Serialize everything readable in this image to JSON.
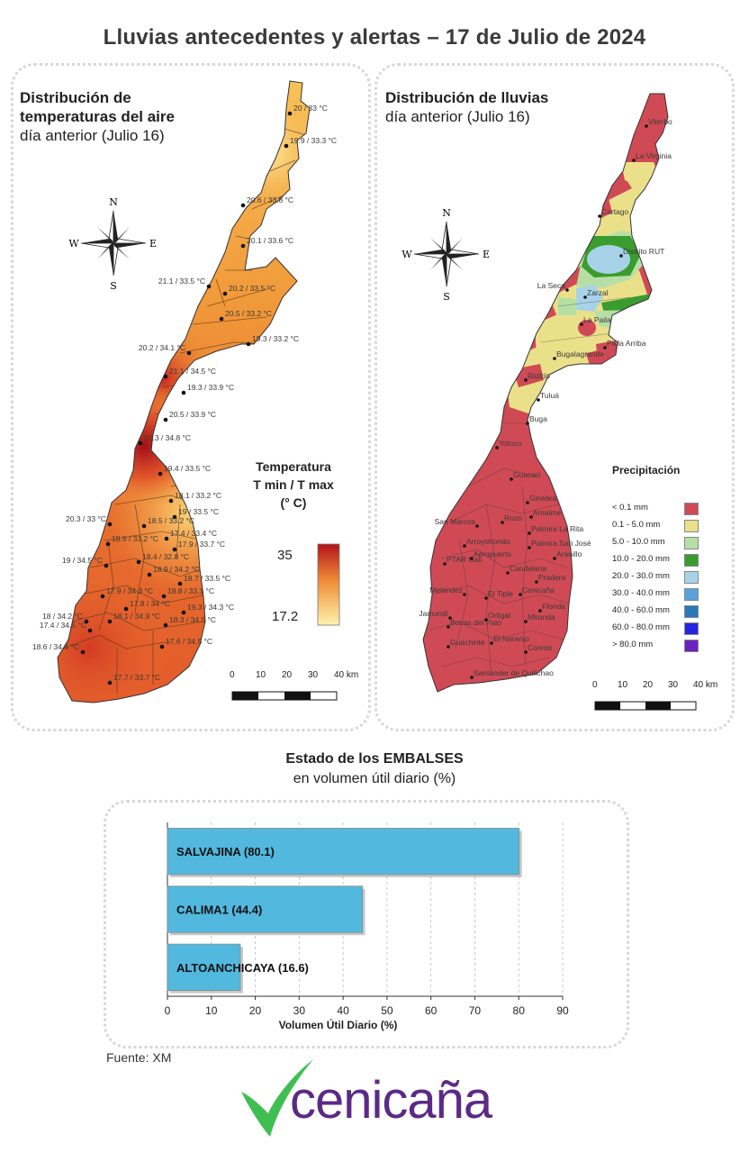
{
  "header": {
    "title": "Lluvias antecedentes y alertas – 17 de Julio de 2024"
  },
  "temperature_map": {
    "title_line1": "Distribución de",
    "title_line2": "temperaturas del aire",
    "subtitle": "día anterior (Julio 16)",
    "legend": {
      "line1": "Temperatura",
      "line2": "T min / T max",
      "line3": "(° C)",
      "max": "35",
      "min": "17.2"
    },
    "stations": [
      "20 / 33 °C",
      "19.9 / 33.3 °C",
      "20.6 / 33.8 °C",
      "20.1 / 33.6 °C",
      "21.1 / 33.5 °C",
      "20.2 / 33.5 °C",
      "20.5 / 33.2 °C",
      "19.3 / 33.2 °C",
      "20.2 / 34.1 °C",
      "21.1 / 34.5 °C",
      "19.3 / 33.9 °C",
      "20.5 / 33.9 °C",
      "21.3 / 34.8 °C",
      "19.4 / 33.5 °C",
      "18.1 / 33.2 °C",
      "19 / 33.5 °C",
      "20.3 / 33 °C",
      "18.5 / 33.2 °C",
      "17.4 / 33.4 °C",
      "18.9 / 33.2 °C",
      "17.9 / 33.7 °C",
      "19 / 34.5 °C",
      "18.4 / 32.8 °C",
      "18.9 / 34.2 °C",
      "18.7 / 33.5 °C",
      "17.9 / 34.3 °C",
      "18.8 / 33.1 °C",
      "17.8 / 34 °C",
      "19.3 / 34.3 °C",
      "18 / 34.2 °C",
      "18.1 / 34.9 °C",
      "18.3 / 34.5 °C",
      "17.4 / 34.5 °C",
      "18.6 / 34.4 °C",
      "17.6 / 34.5 °C",
      "17.7 / 33.7 °C"
    ],
    "colors": {
      "high": "#b3121c",
      "mid": "#f39a3a",
      "low": "#fdf0a8"
    }
  },
  "rain_map": {
    "title": "Distribución de lluvias",
    "subtitle": "día anterior (Julio 16)",
    "legend_title": "Precipitación",
    "classes": [
      {
        "label": "< 0.1 mm",
        "color": "#d04a55"
      },
      {
        "label": "0.1 - 5.0 mm",
        "color": "#ebe08a"
      },
      {
        "label": "5.0 - 10.0 mm",
        "color": "#b7dfa5"
      },
      {
        "label": "10.0 - 20.0 mm",
        "color": "#3a9c2e"
      },
      {
        "label": "20.0 - 30.0 mm",
        "color": "#a8d2e8"
      },
      {
        "label": "30.0 - 40.0 mm",
        "color": "#5aa2dc"
      },
      {
        "label": "40.0 - 60.0 mm",
        "color": "#2a78b8"
      },
      {
        "label": "60.0 - 80.0 mm",
        "color": "#2525e0"
      },
      {
        "label": "> 80.0 mm",
        "color": "#6a22c0"
      }
    ],
    "places": [
      "Viterbo",
      "La Virginia",
      "Cartago",
      "Distrito RUT",
      "La Seca",
      "Zarzal",
      "La Paila",
      "Paila Arriba",
      "Bugalagrande",
      "Riofrío",
      "Tuluá",
      "Buga",
      "Yotoco",
      "Guacarí",
      "Ginebra",
      "Amaime",
      "San Marcos",
      "Rozo",
      "Palmira La Rita",
      "Arroyohondo",
      "Palmira San José",
      "Aeropuerto",
      "Aranillo",
      "PTAR Cali",
      "Candelaria",
      "Pradera",
      "Meléndez",
      "El Tiple",
      "Cenicaña",
      "Florida",
      "Jamundí",
      "Bocas del Palo",
      "Ortigal",
      "Miranda",
      "El Naranjo",
      "Guachinte",
      "Corinto",
      "Santander de Quilichao"
    ]
  },
  "compass": {
    "n": "N",
    "s": "S",
    "e": "E",
    "w": "W"
  },
  "scale": {
    "labels": [
      "0",
      "10",
      "20",
      "30",
      "40 km"
    ]
  },
  "reservoirs": {
    "title": "Estado de los EMBALSES",
    "subtitle": "en volumen útil diario (%)",
    "xlabel": "Volumen Útil Diario (%)",
    "bar_color": "#52b8de"
  },
  "chart_data": {
    "type": "bar",
    "orientation": "horizontal",
    "categories": [
      "SALVAJINA (80.1)",
      "CALIMA1 (44.4)",
      "ALTOANCHICAYA (16.6)"
    ],
    "values": [
      80.1,
      44.4,
      16.6
    ],
    "xlabel": "Volumen Útil Diario (%)",
    "xlim": [
      0,
      90
    ],
    "xticks": [
      0,
      10,
      20,
      30,
      40,
      50,
      60,
      70,
      80,
      90
    ],
    "grid": true
  },
  "footer": {
    "source": "Fuente: XM",
    "logo": "cenicaña"
  }
}
